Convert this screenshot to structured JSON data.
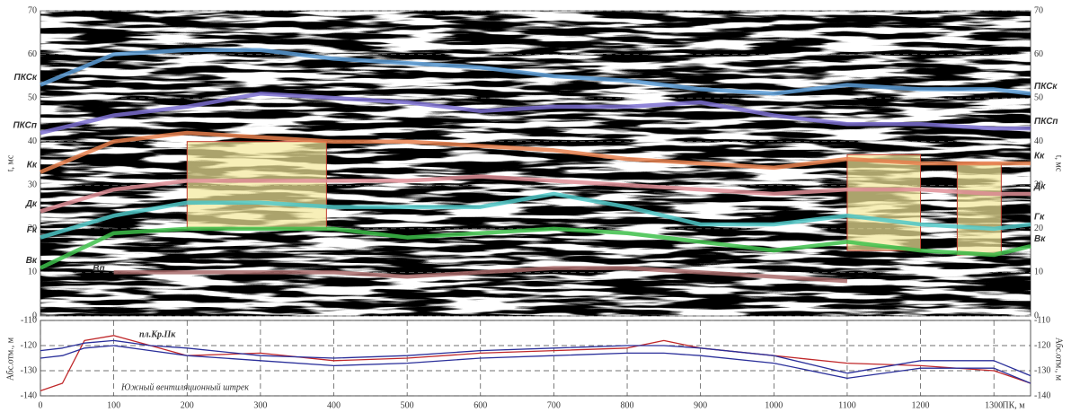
{
  "chart_data": [
    {
      "type": "line",
      "ylabel": "t, мс",
      "xlim": [
        0,
        1350
      ],
      "ylim": [
        0,
        70
      ],
      "yticks": [
        0,
        10,
        20,
        30,
        40,
        50,
        60,
        70
      ],
      "grid": true,
      "x": [
        0,
        100,
        200,
        300,
        400,
        500,
        600,
        700,
        800,
        900,
        1000,
        1100,
        1200,
        1300,
        1350
      ],
      "series": [
        {
          "name": "ПКСк",
          "color": "#5b9bd5",
          "values": [
            53,
            60,
            61,
            61,
            59,
            58,
            57,
            55,
            54,
            52,
            51,
            53,
            52,
            52,
            51
          ]
        },
        {
          "name": "ПКСп",
          "color": "#7b6fd0",
          "values": [
            42,
            46,
            48,
            51,
            50,
            49,
            47,
            48,
            48,
            49,
            46,
            44,
            44,
            43,
            43
          ]
        },
        {
          "name": "Кк",
          "color": "#e8804e",
          "values": [
            33,
            40,
            42,
            41,
            40,
            40,
            39,
            38,
            36,
            35,
            34,
            36,
            35,
            35,
            35
          ]
        },
        {
          "name": "Дк",
          "color": "#e08f98",
          "values": [
            24,
            29,
            31,
            31,
            31,
            31,
            32,
            31,
            30,
            29,
            28,
            29,
            29,
            28,
            28
          ]
        },
        {
          "name": "Гк",
          "color": "#4fc7c7",
          "values": [
            18,
            23,
            26,
            26,
            25,
            25,
            25,
            28,
            25,
            21,
            21,
            23,
            21,
            20,
            21
          ]
        },
        {
          "name": "Вк",
          "color": "#3dbf4a",
          "values": [
            11,
            19,
            20,
            20,
            20,
            18,
            19,
            20,
            19,
            17,
            15,
            17,
            15,
            14,
            16
          ]
        },
        {
          "name": "Вп",
          "color": "#a86a6a",
          "values": [
            null,
            10,
            10,
            10,
            10,
            9,
            10,
            11,
            11,
            10,
            9,
            8,
            null,
            null,
            null
          ]
        }
      ],
      "zones": [
        {
          "x": [
            200,
            390
          ],
          "t": [
            20,
            40
          ]
        },
        {
          "x": [
            1100,
            1200
          ],
          "t": [
            15,
            37
          ]
        },
        {
          "x": [
            1250,
            1310
          ],
          "t": [
            14,
            35
          ]
        }
      ]
    },
    {
      "type": "line",
      "ylabel": "Абс.отм., м",
      "xlabel": "ПК, м",
      "xlim": [
        0,
        1350
      ],
      "ylim": [
        -140,
        -110
      ],
      "yticks": [
        -140,
        -130,
        -120,
        -110
      ],
      "xticks": [
        0,
        100,
        200,
        300,
        400,
        500,
        600,
        700,
        800,
        900,
        1000,
        1100,
        1200,
        1300
      ],
      "grid": true,
      "x": [
        0,
        30,
        60,
        100,
        150,
        200,
        300,
        400,
        500,
        600,
        700,
        800,
        850,
        900,
        1000,
        1100,
        1200,
        1300,
        1350
      ],
      "series": [
        {
          "name": "пл.Кр.IIк",
          "color": "#c0282a",
          "values": [
            -138,
            -135,
            -118,
            -116,
            -120,
            -124,
            -123,
            -126,
            -125,
            -123,
            -122,
            -121,
            -118,
            -121,
            -124,
            -127,
            -128,
            -130,
            -135
          ]
        },
        {
          "name": "Южный вентиляционный штрек",
          "color": "#2a2f9a",
          "values": [
            -122,
            -121,
            -119,
            -118,
            -120,
            -121,
            -124,
            -125,
            -124,
            -122,
            -121,
            -120,
            -120,
            -121,
            -124,
            -131,
            -126,
            -126,
            -132
          ]
        },
        {
          "color": "#2a2f9a",
          "values": [
            -125,
            -124,
            -121,
            -120,
            -122,
            -124,
            -126,
            -128,
            -127,
            -125,
            -124,
            -123,
            -123,
            -124,
            -127,
            -133,
            -129,
            -129,
            -135
          ]
        }
      ]
    }
  ]
}
